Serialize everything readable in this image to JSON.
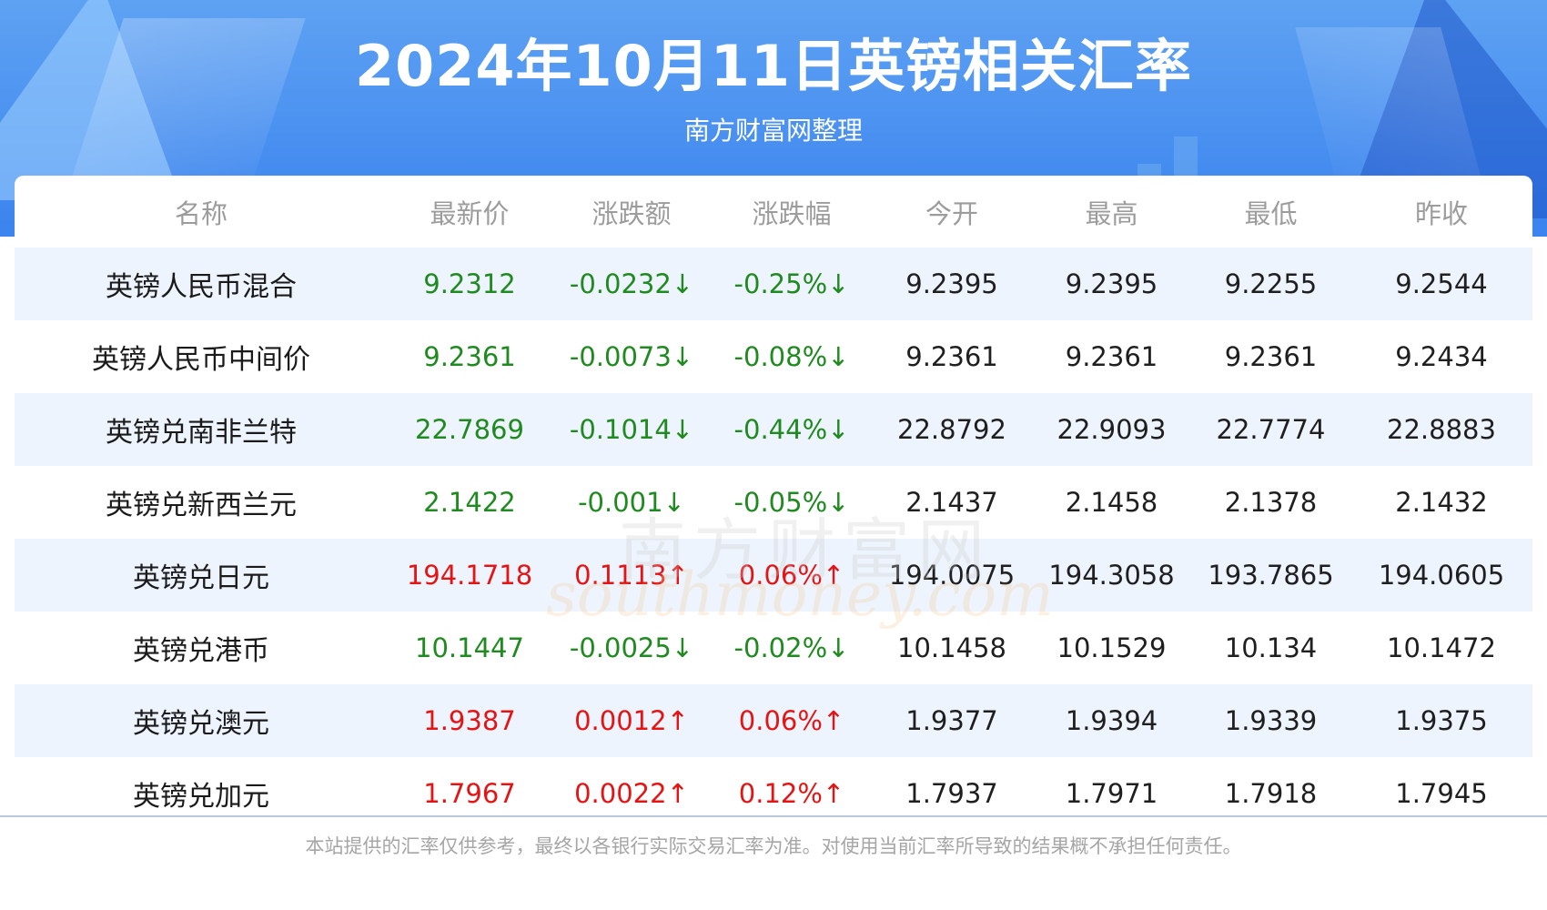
{
  "header": {
    "title": "2024年10月11日英镑相关汇率",
    "subtitle": "南方财富网整理"
  },
  "table": {
    "columns": [
      "名称",
      "最新价",
      "涨跌额",
      "涨跌幅",
      "今开",
      "最高",
      "最低",
      "昨收"
    ],
    "rows": [
      {
        "name": "英镑人民币混合",
        "latest": "9.2312",
        "change": "-0.0232↓",
        "change_pct": "-0.25%↓",
        "open": "9.2395",
        "high": "9.2395",
        "low": "9.2255",
        "prev_close": "9.2544",
        "direction": "down"
      },
      {
        "name": "英镑人民币中间价",
        "latest": "9.2361",
        "change": "-0.0073↓",
        "change_pct": "-0.08%↓",
        "open": "9.2361",
        "high": "9.2361",
        "low": "9.2361",
        "prev_close": "9.2434",
        "direction": "down"
      },
      {
        "name": "英镑兑南非兰特",
        "latest": "22.7869",
        "change": "-0.1014↓",
        "change_pct": "-0.44%↓",
        "open": "22.8792",
        "high": "22.9093",
        "low": "22.7774",
        "prev_close": "22.8883",
        "direction": "down"
      },
      {
        "name": "英镑兑新西兰元",
        "latest": "2.1422",
        "change": "-0.001↓",
        "change_pct": "-0.05%↓",
        "open": "2.1437",
        "high": "2.1458",
        "low": "2.1378",
        "prev_close": "2.1432",
        "direction": "down"
      },
      {
        "name": "英镑兑日元",
        "latest": "194.1718",
        "change": "0.1113↑",
        "change_pct": "0.06%↑",
        "open": "194.0075",
        "high": "194.3058",
        "low": "193.7865",
        "prev_close": "194.0605",
        "direction": "up"
      },
      {
        "name": "英镑兑港币",
        "latest": "10.1447",
        "change": "-0.0025↓",
        "change_pct": "-0.02%↓",
        "open": "10.1458",
        "high": "10.1529",
        "low": "10.134",
        "prev_close": "10.1472",
        "direction": "down"
      },
      {
        "name": "英镑兑澳元",
        "latest": "1.9387",
        "change": "0.0012↑",
        "change_pct": "0.06%↑",
        "open": "1.9377",
        "high": "1.9394",
        "low": "1.9339",
        "prev_close": "1.9375",
        "direction": "up"
      },
      {
        "name": "英镑兑加元",
        "latest": "1.7967",
        "change": "0.0022↑",
        "change_pct": "0.12%↑",
        "open": "1.7937",
        "high": "1.7971",
        "low": "1.7918",
        "prev_close": "1.7945",
        "direction": "up"
      }
    ]
  },
  "watermark": {
    "cn": "南方财富网",
    "en": "southmoney.com"
  },
  "footer": {
    "disclaimer": "本站提供的汇率仅供参考，最终以各银行实际交易汇率为准。对使用当前汇率所导致的结果概不承担任何责任。"
  },
  "colors": {
    "up": "#e51414",
    "down": "#1f8a1f",
    "header_blue": "#3b83ee",
    "row_stripe": "#eef4fd"
  }
}
